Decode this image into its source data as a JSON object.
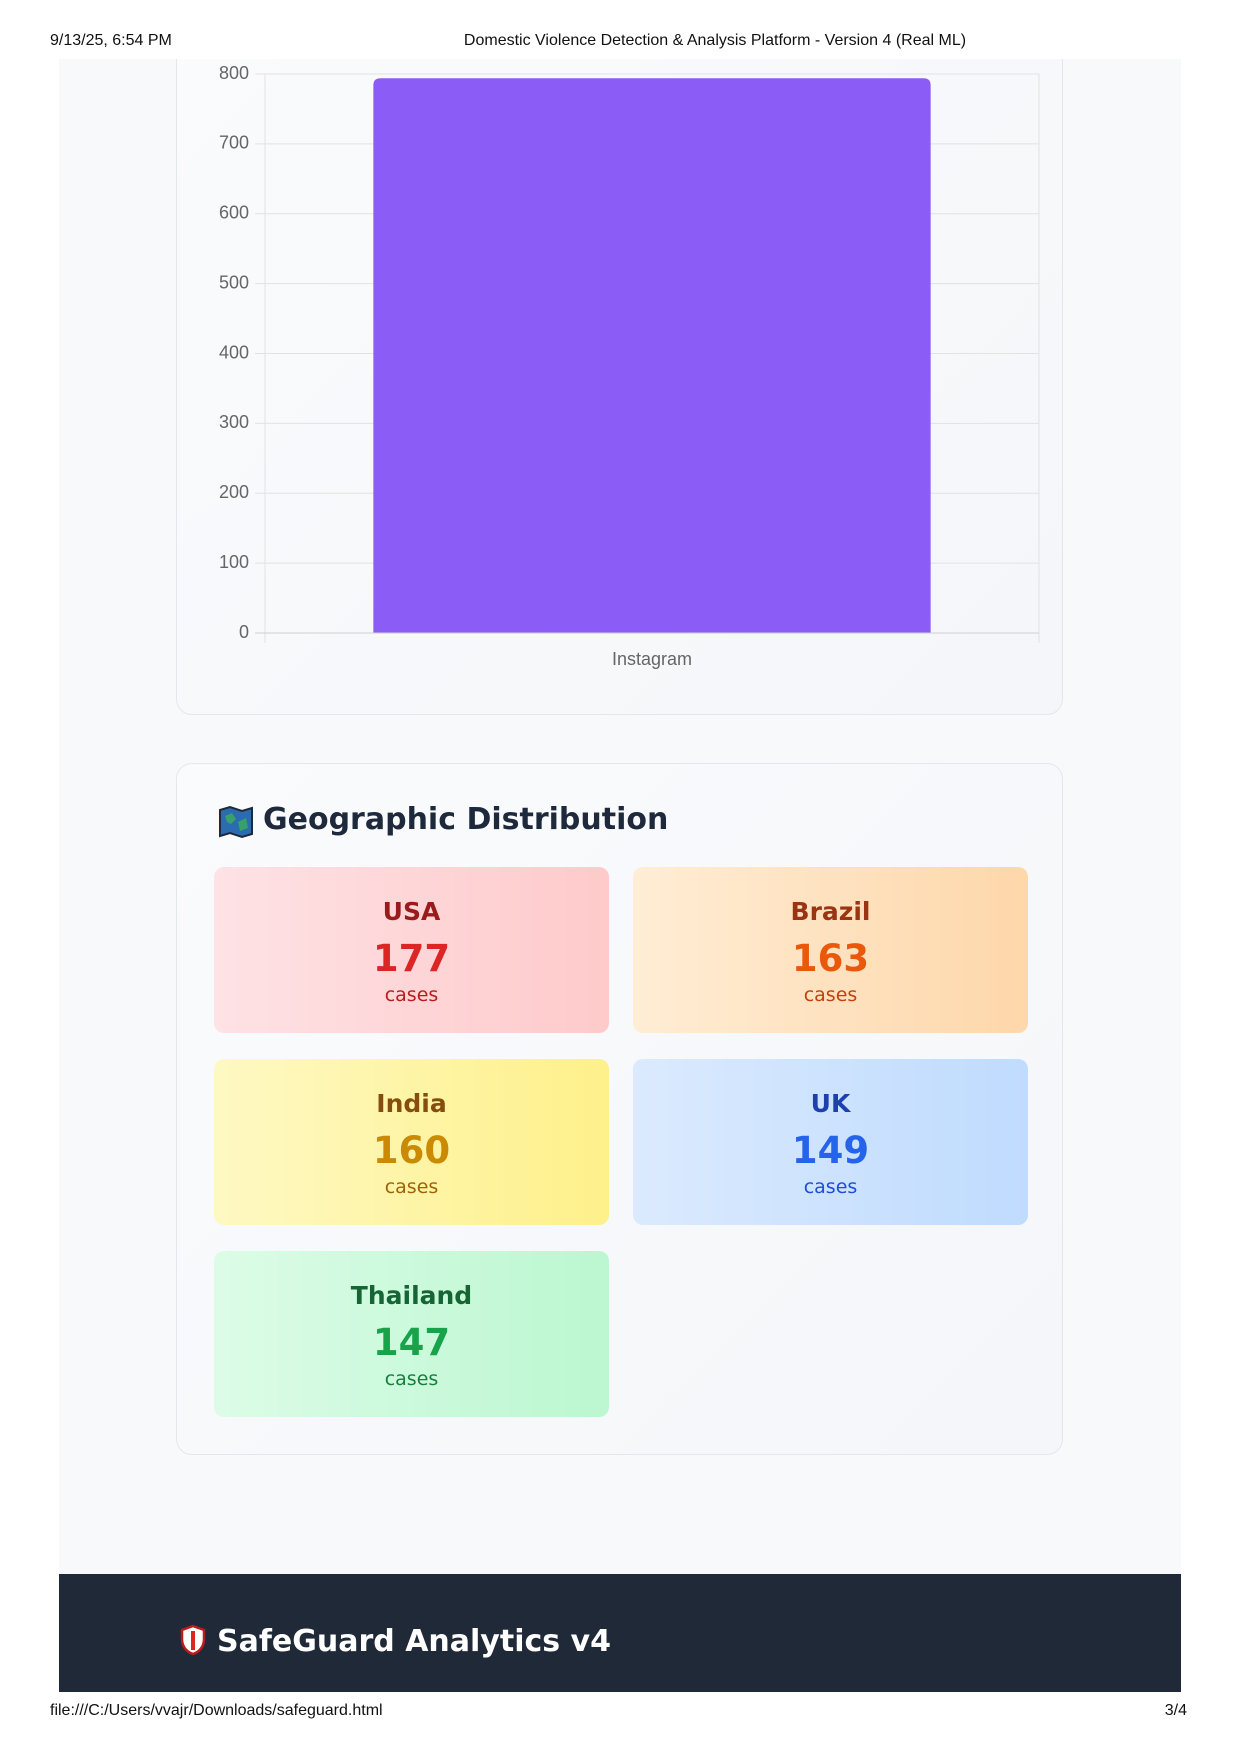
{
  "header": {
    "date": "9/13/25, 6:54 PM",
    "title": "Domestic Violence Detection & Analysis Platform - Version 4 (Real ML)"
  },
  "chart_data": {
    "type": "bar",
    "categories": [
      "Instagram"
    ],
    "values": [
      794
    ],
    "color": "#8b5cf6",
    "ylim": [
      0,
      800
    ],
    "yticks": [
      0,
      100,
      200,
      300,
      400,
      500,
      600,
      700,
      800
    ],
    "grid": true
  },
  "geo": {
    "title": "Geographic Distribution",
    "cards": [
      {
        "name": "USA",
        "count": 177,
        "unit": "cases"
      },
      {
        "name": "Brazil",
        "count": 163,
        "unit": "cases"
      },
      {
        "name": "India",
        "count": 160,
        "unit": "cases"
      },
      {
        "name": "UK",
        "count": 149,
        "unit": "cases"
      },
      {
        "name": "Thailand",
        "count": 147,
        "unit": "cases"
      }
    ]
  },
  "footer": {
    "brand": "SafeGuard Analytics v4"
  },
  "print_footer": {
    "url": "file:///C:/Users/vvajr/Downloads/safeguard.html",
    "page": "3/4"
  }
}
